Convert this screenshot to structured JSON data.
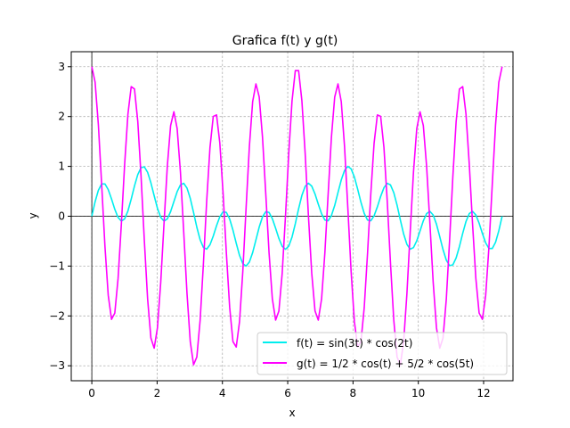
{
  "chart_data": {
    "type": "line",
    "title": "Grafica f(t) y g(t)",
    "xlabel": "x",
    "ylabel": "y",
    "xlim": [
      -0.63,
      12.9
    ],
    "ylim": [
      -3.3,
      3.3
    ],
    "xticks": [
      0,
      2,
      4,
      6,
      8,
      10,
      12
    ],
    "xtick_labels": [
      "0",
      "2",
      "4",
      "6",
      "8",
      "10",
      "12"
    ],
    "yticks": [
      -3,
      -2,
      -1,
      0,
      1,
      2,
      3
    ],
    "ytick_labels": [
      "−3",
      "−2",
      "−1",
      "0",
      "1",
      "2",
      "3"
    ],
    "grid": true,
    "grid_style": "dashed",
    "reference_lines": {
      "x": 0,
      "y": 0
    },
    "legend_position": "lower-right",
    "x_domain": [
      0,
      12.566
    ],
    "sample_count": 126,
    "series": [
      {
        "name": "f(t) = sin(3t) * cos(2t)",
        "color": "#00eeee",
        "formula": "sin(3t)*cos(2t)"
      },
      {
        "name": "g(t) = 1/2 * cos(t) + 5/2 * cos(5t)",
        "color": "#ff00ff",
        "formula": "0.5*cos(t)+2.5*cos(5t)"
      }
    ]
  }
}
